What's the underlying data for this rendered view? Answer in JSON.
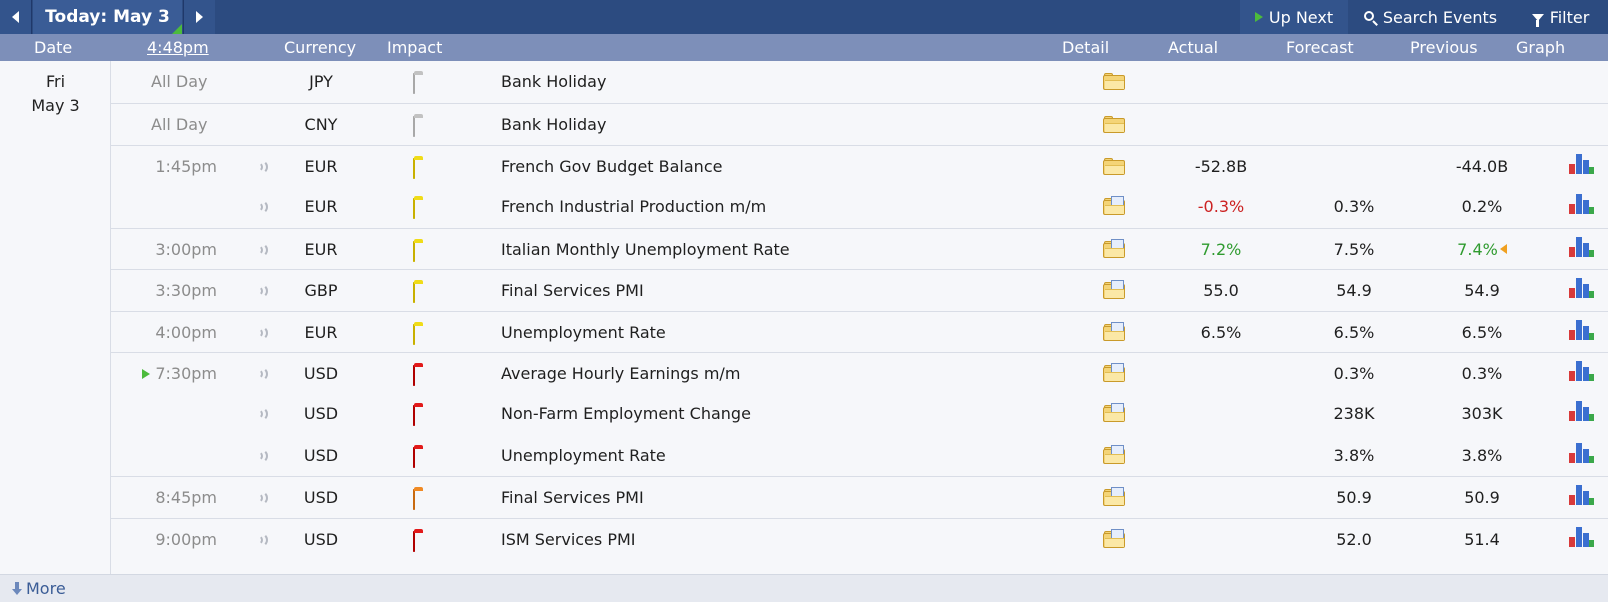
{
  "nav": {
    "today_label": "Today: May 3",
    "up_next_label": "Up Next",
    "search_label": "Search Events",
    "filter_label": "Filter"
  },
  "header": {
    "date": "Date",
    "time": "4:48pm",
    "currency": "Currency",
    "impact": "Impact",
    "detail": "Detail",
    "actual": "Actual",
    "forecast": "Forecast",
    "previous": "Previous",
    "graph": "Graph"
  },
  "day": {
    "weekday": "Fri",
    "date": "May 3"
  },
  "events": [
    {
      "time": "All Day",
      "currency": "JPY",
      "impact": "gray",
      "event": "Bank Holiday",
      "actual": "",
      "forecast": "",
      "previous": "",
      "graph": false,
      "sound": false
    },
    {
      "time": "All Day",
      "currency": "CNY",
      "impact": "gray",
      "event": "Bank Holiday",
      "actual": "",
      "forecast": "",
      "previous": "",
      "graph": false,
      "sound": false
    },
    {
      "time": "1:45pm",
      "currency": "EUR",
      "impact": "yellow",
      "event": "French Gov Budget Balance",
      "actual": "-52.8B",
      "forecast": "",
      "previous": "-44.0B",
      "graph": true,
      "sound": true
    },
    {
      "time": "",
      "currency": "EUR",
      "impact": "yellow",
      "event": "French Industrial Production m/m",
      "actual": "-0.3%",
      "actual_status": "worse",
      "forecast": "0.3%",
      "previous": "0.2%",
      "graph": true,
      "sound": true
    },
    {
      "time": "3:00pm",
      "currency": "EUR",
      "impact": "yellow",
      "event": "Italian Monthly Unemployment Rate",
      "actual": "7.2%",
      "actual_status": "better",
      "forecast": "7.5%",
      "previous": "7.4%",
      "previous_status": "better-revised",
      "graph": true,
      "sound": true
    },
    {
      "time": "3:30pm",
      "currency": "GBP",
      "impact": "yellow",
      "event": "Final Services PMI",
      "actual": "55.0",
      "forecast": "54.9",
      "previous": "54.9",
      "graph": true,
      "sound": true
    },
    {
      "time": "4:00pm",
      "currency": "EUR",
      "impact": "yellow",
      "event": "Unemployment Rate",
      "actual": "6.5%",
      "forecast": "6.5%",
      "previous": "6.5%",
      "graph": true,
      "sound": true
    },
    {
      "time": "7:30pm",
      "currency": "USD",
      "impact": "red",
      "event": "Average Hourly Earnings m/m",
      "actual": "",
      "forecast": "0.3%",
      "previous": "0.3%",
      "graph": true,
      "sound": true,
      "up_next": true
    },
    {
      "time": "",
      "currency": "USD",
      "impact": "red",
      "event": "Non-Farm Employment Change",
      "actual": "",
      "forecast": "238K",
      "previous": "303K",
      "graph": true,
      "sound": true
    },
    {
      "time": "",
      "currency": "USD",
      "impact": "red",
      "event": "Unemployment Rate",
      "actual": "",
      "forecast": "3.8%",
      "previous": "3.8%",
      "graph": true,
      "sound": true
    },
    {
      "time": "8:45pm",
      "currency": "USD",
      "impact": "orange",
      "event": "Final Services PMI",
      "actual": "",
      "forecast": "50.9",
      "previous": "50.9",
      "graph": true,
      "sound": true
    },
    {
      "time": "9:00pm",
      "currency": "USD",
      "impact": "red",
      "event": "ISM Services PMI",
      "actual": "",
      "forecast": "52.0",
      "previous": "51.4",
      "graph": true,
      "sound": true
    }
  ],
  "footer": {
    "more_label": "More"
  },
  "colors": {
    "nav_bg": "#2c4b80",
    "header_bg": "#7d8fb9",
    "worse": "#cc2222",
    "better": "#2f9b2f",
    "impact_gray": "#c2c2c2",
    "impact_yellow": "#f0dc18",
    "impact_orange": "#f08a24",
    "impact_red": "#e21a1a"
  }
}
